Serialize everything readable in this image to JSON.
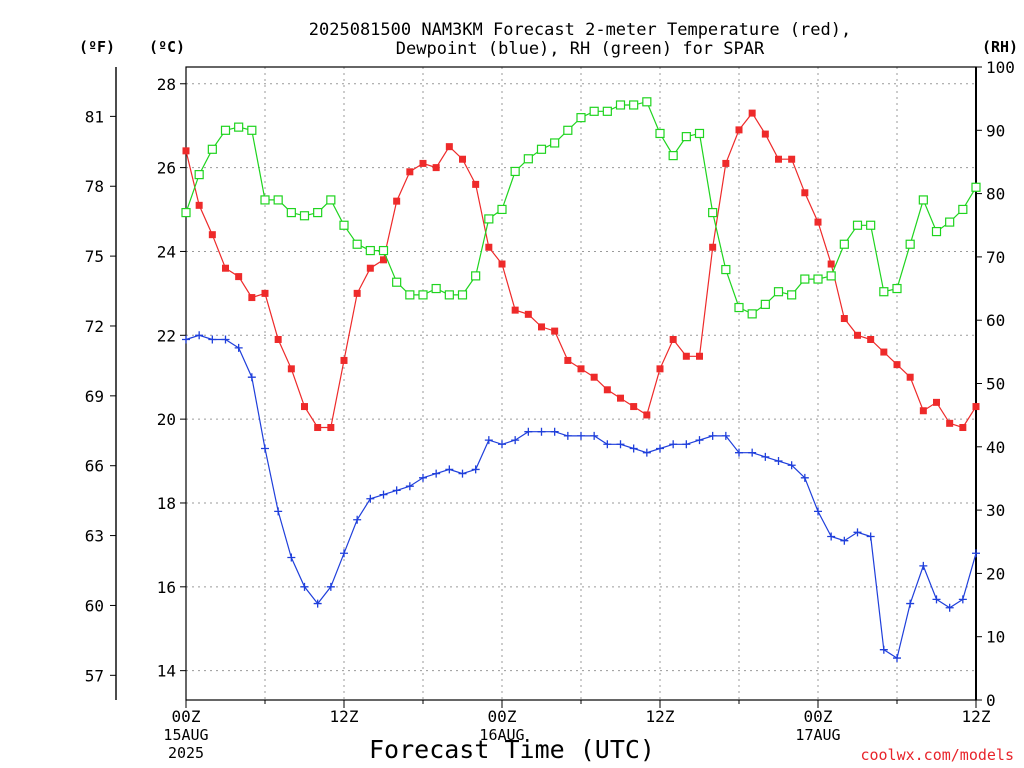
{
  "chart_data": {
    "type": "line",
    "title": [
      "2025081500 NAM3KM Forecast 2-meter Temperature (red),",
      "Dewpoint (blue), RH (green) for SPAR"
    ],
    "xlabel": "Forecast Time (UTC)",
    "ylabel_left_f": "(ºF)",
    "ylabel_left_c": "(ºC)",
    "ylabel_right": "(RH)",
    "credit": "coolwx.com/models",
    "x_start": "2025-08-15 00Z",
    "x_end": "2025-08-17 12Z",
    "x_ticks": [
      {
        "hour": 0,
        "label": "00Z",
        "date": "15AUG",
        "year": "2025"
      },
      {
        "hour": 12,
        "label": "12Z"
      },
      {
        "hour": 24,
        "label": "00Z",
        "date": "16AUG"
      },
      {
        "hour": 36,
        "label": "12Z"
      },
      {
        "hour": 48,
        "label": "00Z",
        "date": "17AUG"
      },
      {
        "hour": 60,
        "label": "12Z"
      }
    ],
    "ylim_c": [
      13.3,
      28.4
    ],
    "yticks_c": [
      "14",
      "16",
      "18",
      "20",
      "22",
      "24",
      "26",
      "28"
    ],
    "yticks_f": [
      "57",
      "60",
      "63",
      "66",
      "69",
      "72",
      "75",
      "78",
      "81"
    ],
    "ylim_rh": [
      0,
      100
    ],
    "yticks_rh": [
      "0",
      "10",
      "20",
      "30",
      "40",
      "50",
      "60",
      "70",
      "80",
      "90",
      "100"
    ],
    "grid": true,
    "series": [
      {
        "name": "Temperature",
        "axis": "C",
        "color": "#ee2a2a",
        "marker": "filled-square",
        "values": [
          26.4,
          25.1,
          24.4,
          23.6,
          23.4,
          22.9,
          23.0,
          21.9,
          21.2,
          20.3,
          19.8,
          19.8,
          21.4,
          23.0,
          23.6,
          23.8,
          25.2,
          25.9,
          26.1,
          26.0,
          26.5,
          26.2,
          25.6,
          24.1,
          23.7,
          22.6,
          22.5,
          22.2,
          22.1,
          21.4,
          21.2,
          21.0,
          20.7,
          20.5,
          20.3,
          20.1,
          21.2,
          21.9,
          21.5,
          21.5,
          24.1,
          26.1,
          26.9,
          27.3,
          26.8,
          26.2,
          26.2,
          25.4,
          24.7,
          23.7,
          22.4,
          22.0,
          21.9,
          21.6,
          21.3,
          21.0,
          20.2,
          20.4,
          19.9,
          19.8,
          20.3
        ]
      },
      {
        "name": "Dewpoint",
        "axis": "C",
        "color": "#1f3fdb",
        "marker": "plus",
        "values": [
          21.9,
          22.0,
          21.9,
          21.9,
          21.7,
          21.0,
          19.3,
          17.8,
          16.7,
          16.0,
          15.6,
          16.0,
          16.8,
          17.6,
          18.1,
          18.2,
          18.3,
          18.4,
          18.6,
          18.7,
          18.8,
          18.7,
          18.8,
          19.5,
          19.4,
          19.5,
          19.7,
          19.7,
          19.7,
          19.6,
          19.6,
          19.6,
          19.4,
          19.4,
          19.3,
          19.2,
          19.3,
          19.4,
          19.4,
          19.5,
          19.6,
          19.6,
          19.2,
          19.2,
          19.1,
          19.0,
          18.9,
          18.6,
          17.8,
          17.2,
          17.1,
          17.3,
          17.2,
          14.5,
          14.3,
          15.6,
          16.5,
          15.7,
          15.5,
          15.7,
          16.8
        ]
      },
      {
        "name": "RH",
        "axis": "RH",
        "color": "#1fd41f",
        "marker": "open-square",
        "values": [
          77,
          83,
          87,
          90,
          90.5,
          90,
          79,
          79,
          77,
          76.5,
          77,
          79,
          75,
          72,
          71,
          71,
          66,
          64,
          64,
          65,
          64,
          64,
          67,
          76,
          77.5,
          83.5,
          85.5,
          87,
          88,
          90,
          92,
          93,
          93,
          94,
          94,
          94.5,
          89.5,
          86,
          89,
          89.5,
          77,
          68,
          62,
          61,
          62.5,
          64.5,
          64,
          66.5,
          66.5,
          67,
          72,
          75,
          75,
          64.5,
          65,
          72,
          79,
          74,
          75.5,
          77.5,
          81
        ]
      }
    ]
  }
}
